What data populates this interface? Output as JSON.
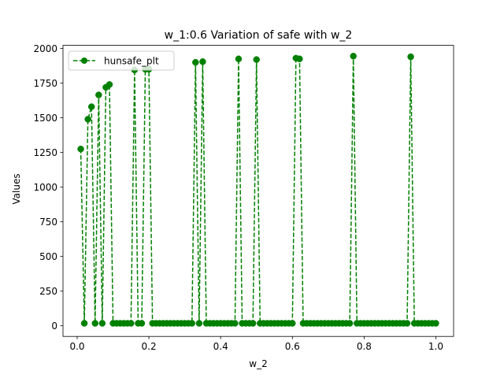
{
  "chart_data": {
    "type": "line",
    "title": "w_1:0.6 Variation of safe with w_2",
    "xlabel": "w_2",
    "ylabel": "Values",
    "xlim": [
      -0.0395,
      1.0495
    ],
    "ylim": [
      -76.5,
      2022.5
    ],
    "xticks": [
      0.0,
      0.2,
      0.4,
      0.6,
      0.8,
      1.0
    ],
    "xtick_labels": [
      "0.0",
      "0.2",
      "0.4",
      "0.6",
      "0.8",
      "1.0"
    ],
    "yticks": [
      0,
      250,
      500,
      750,
      1000,
      1250,
      1500,
      1750,
      2000
    ],
    "ytick_labels": [
      "0",
      "250",
      "500",
      "750",
      "1000",
      "1250",
      "1500",
      "1750",
      "2000"
    ],
    "grid": false,
    "legend_position": "upper-left",
    "series": [
      {
        "name": "hunsafe_plt",
        "color": "#008000",
        "line_style": "dashed",
        "marker": "circle",
        "x": [
          0.01,
          0.02,
          0.03,
          0.04,
          0.05,
          0.06,
          0.07,
          0.08,
          0.09,
          0.1,
          0.11,
          0.12,
          0.13,
          0.14,
          0.15,
          0.16,
          0.17,
          0.18,
          0.19,
          0.2,
          0.21,
          0.22,
          0.23,
          0.24,
          0.25,
          0.26,
          0.27,
          0.28,
          0.29,
          0.3,
          0.31,
          0.32,
          0.33,
          0.34,
          0.35,
          0.36,
          0.37,
          0.38,
          0.39,
          0.4,
          0.41,
          0.42,
          0.43,
          0.44,
          0.45,
          0.46,
          0.47,
          0.48,
          0.49,
          0.5,
          0.51,
          0.52,
          0.53,
          0.54,
          0.55,
          0.56,
          0.57,
          0.58,
          0.59,
          0.6,
          0.61,
          0.62,
          0.63,
          0.64,
          0.65,
          0.66,
          0.67,
          0.68,
          0.69,
          0.7,
          0.71,
          0.72,
          0.73,
          0.74,
          0.75,
          0.76,
          0.77,
          0.78,
          0.79,
          0.8,
          0.81,
          0.82,
          0.83,
          0.84,
          0.85,
          0.86,
          0.87,
          0.88,
          0.89,
          0.9,
          0.91,
          0.92,
          0.93,
          0.94,
          0.95,
          0.96,
          0.97,
          0.98,
          0.99,
          1.0
        ],
        "values": [
          1275,
          18,
          1490,
          1580,
          18,
          1665,
          18,
          1720,
          1740,
          18,
          18,
          18,
          18,
          18,
          18,
          1845,
          18,
          18,
          1850,
          1850,
          18,
          18,
          18,
          18,
          18,
          18,
          18,
          18,
          18,
          18,
          18,
          18,
          1900,
          18,
          1905,
          18,
          18,
          18,
          18,
          18,
          18,
          18,
          18,
          18,
          1925,
          18,
          18,
          18,
          18,
          1920,
          18,
          18,
          18,
          18,
          18,
          18,
          18,
          18,
          18,
          18,
          1930,
          1925,
          18,
          18,
          18,
          18,
          18,
          18,
          18,
          18,
          18,
          18,
          18,
          18,
          18,
          18,
          1945,
          18,
          18,
          18,
          18,
          18,
          18,
          18,
          18,
          18,
          18,
          18,
          18,
          18,
          18,
          18,
          1940,
          18,
          18,
          18,
          18,
          18,
          18,
          18
        ]
      }
    ]
  }
}
